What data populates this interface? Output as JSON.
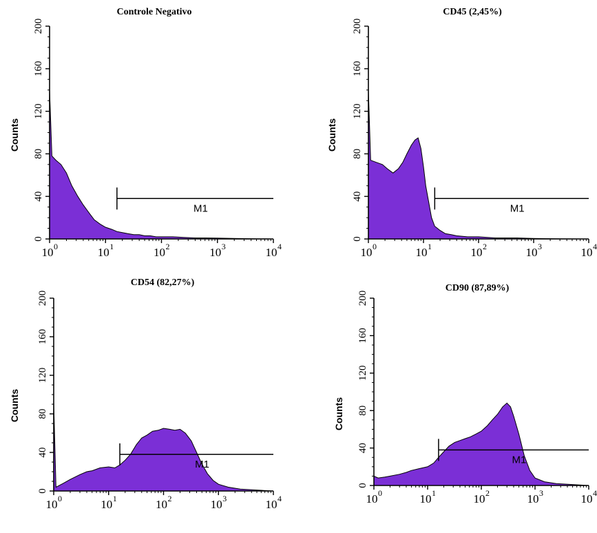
{
  "figure": {
    "colors": {
      "fill": "#7B2FD6",
      "edge": "#000000",
      "axis": "#000000"
    }
  },
  "chart_data": [
    {
      "type": "area",
      "title": "Controle Negativo",
      "ylabel": "Counts",
      "xscale": "log",
      "xlim": [
        1,
        10000
      ],
      "ylim": [
        0,
        200
      ],
      "yticks": [
        "0",
        "40",
        "80",
        "120",
        "160",
        "200"
      ],
      "xtick_labels": [
        {
          "base": "10",
          "exp": "0"
        },
        {
          "base": "10",
          "exp": "1"
        },
        {
          "base": "10",
          "exp": "2"
        },
        {
          "base": "10",
          "exp": "3"
        },
        {
          "base": "10",
          "exp": "4"
        }
      ],
      "marker": {
        "label": "M1",
        "x_start": 16,
        "x_end": 10000,
        "y": 38
      },
      "series": [
        {
          "x": [
            1,
            1.1,
            1.3,
            1.6,
            2.0,
            2.5,
            3.2,
            4,
            5,
            6.3,
            8,
            10,
            13,
            16,
            20,
            25,
            32,
            40,
            50,
            63,
            80,
            100,
            160,
            250,
            400,
            630,
            1000,
            2000,
            5000,
            10000
          ],
          "y": [
            140,
            78,
            74,
            70,
            62,
            50,
            40,
            32,
            25,
            18,
            14,
            11,
            9,
            7,
            6,
            5,
            4,
            4,
            3,
            3,
            2,
            2,
            2,
            1.5,
            1,
            1,
            0.8,
            0.5,
            0.2,
            0
          ]
        }
      ]
    },
    {
      "type": "area",
      "title": "CD45 (2,45%)",
      "ylabel": "Counts",
      "xscale": "log",
      "xlim": [
        1,
        10000
      ],
      "ylim": [
        0,
        200
      ],
      "yticks": [
        "0",
        "40",
        "80",
        "120",
        "160",
        "200"
      ],
      "xtick_labels": [
        {
          "base": "10",
          "exp": "0"
        },
        {
          "base": "10",
          "exp": "1"
        },
        {
          "base": "10",
          "exp": "2"
        },
        {
          "base": "10",
          "exp": "3"
        },
        {
          "base": "10",
          "exp": "4"
        }
      ],
      "marker": {
        "label": "M1",
        "x_start": 16,
        "x_end": 10000,
        "y": 38
      },
      "series": [
        {
          "x": [
            1,
            1.1,
            1.4,
            1.8,
            2.2,
            2.8,
            3.5,
            4.2,
            5,
            6,
            7,
            8,
            9,
            10,
            11,
            12.5,
            14,
            16,
            20,
            25,
            32,
            40,
            63,
            100,
            200,
            500,
            1000,
            3000,
            10000
          ],
          "y": [
            140,
            74,
            72,
            70,
            66,
            62,
            66,
            72,
            80,
            88,
            93,
            95,
            85,
            68,
            50,
            34,
            20,
            12,
            8,
            5,
            4,
            3,
            2,
            2,
            1,
            1,
            0.5,
            0.2,
            0
          ]
        }
      ]
    },
    {
      "type": "area",
      "title": "CD54 (82,27%)",
      "ylabel": "Counts",
      "xscale": "log",
      "xlim": [
        1,
        10000
      ],
      "ylim": [
        0,
        200
      ],
      "yticks": [
        "0",
        "40",
        "80",
        "120",
        "160",
        "200"
      ],
      "xtick_labels": [
        {
          "base": "10",
          "exp": "0"
        },
        {
          "base": "10",
          "exp": "1"
        },
        {
          "base": "10",
          "exp": "2"
        },
        {
          "base": "10",
          "exp": "3"
        },
        {
          "base": "10",
          "exp": "4"
        }
      ],
      "marker": {
        "label": "M1",
        "x_start": 16,
        "x_end": 10000,
        "y": 38
      },
      "series": [
        {
          "x": [
            1,
            1.1,
            1.5,
            2,
            3,
            4,
            5,
            7,
            10,
            13,
            16,
            20,
            25,
            32,
            40,
            50,
            63,
            80,
            100,
            130,
            160,
            200,
            250,
            320,
            400,
            500,
            630,
            800,
            1000,
            1500,
            2500,
            5000,
            10000
          ],
          "y": [
            92,
            4,
            8,
            12,
            17,
            20,
            21,
            24,
            25,
            24,
            27,
            32,
            38,
            48,
            55,
            58,
            62,
            63,
            65,
            64,
            63,
            64,
            60,
            52,
            40,
            28,
            18,
            11,
            7,
            4,
            2,
            1,
            0
          ]
        }
      ]
    },
    {
      "type": "area",
      "title": "CD90 (87,89%)",
      "ylabel": "Counts",
      "xscale": "log",
      "xlim": [
        1,
        10000
      ],
      "ylim": [
        0,
        200
      ],
      "yticks": [
        "0",
        "40",
        "80",
        "120",
        "160",
        "200"
      ],
      "xtick_labels": [
        {
          "base": "10",
          "exp": "0"
        },
        {
          "base": "10",
          "exp": "1"
        },
        {
          "base": "10",
          "exp": "2"
        },
        {
          "base": "10",
          "exp": "3"
        },
        {
          "base": "10",
          "exp": "4"
        }
      ],
      "marker": {
        "label": "M1",
        "x_start": 16,
        "x_end": 10000,
        "y": 38
      },
      "series": [
        {
          "x": [
            1,
            1.2,
            1.6,
            2,
            3,
            4,
            5,
            7,
            10,
            13,
            16,
            20,
            25,
            32,
            40,
            50,
            63,
            80,
            100,
            130,
            160,
            200,
            250,
            300,
            350,
            400,
            500,
            630,
            800,
            1000,
            1500,
            2500,
            5000,
            10000
          ],
          "y": [
            10,
            8,
            9,
            10,
            12,
            14,
            16,
            18,
            20,
            24,
            30,
            36,
            42,
            46,
            48,
            50,
            52,
            55,
            58,
            64,
            70,
            76,
            84,
            88,
            84,
            74,
            55,
            32,
            16,
            8,
            4,
            2,
            1,
            0
          ]
        }
      ]
    }
  ]
}
